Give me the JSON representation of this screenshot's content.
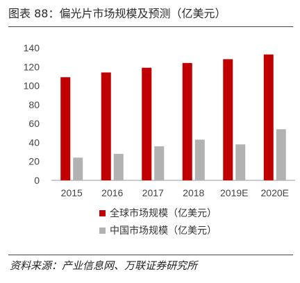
{
  "title": "图表 88：偏光片市场规模及预测（亿美元）",
  "source": "资料来源：产业信息网、万联证券研究所",
  "chart_data": {
    "type": "bar",
    "categories": [
      "2015",
      "2016",
      "2017",
      "2018",
      "2019E",
      "2020E"
    ],
    "series": [
      {
        "name": "全球市场规模（亿美元）",
        "color": "#c00000",
        "values": [
          109,
          114,
          119,
          124,
          128,
          133
        ]
      },
      {
        "name": "中国市场规模（亿美元）",
        "color": "#b2b2b2",
        "values": [
          24,
          28,
          36,
          43,
          38,
          54
        ]
      }
    ],
    "ylim": [
      0,
      140
    ],
    "yticks": [
      0,
      20,
      40,
      60,
      80,
      100,
      120,
      140
    ],
    "grid": false,
    "legend": "bottom"
  }
}
